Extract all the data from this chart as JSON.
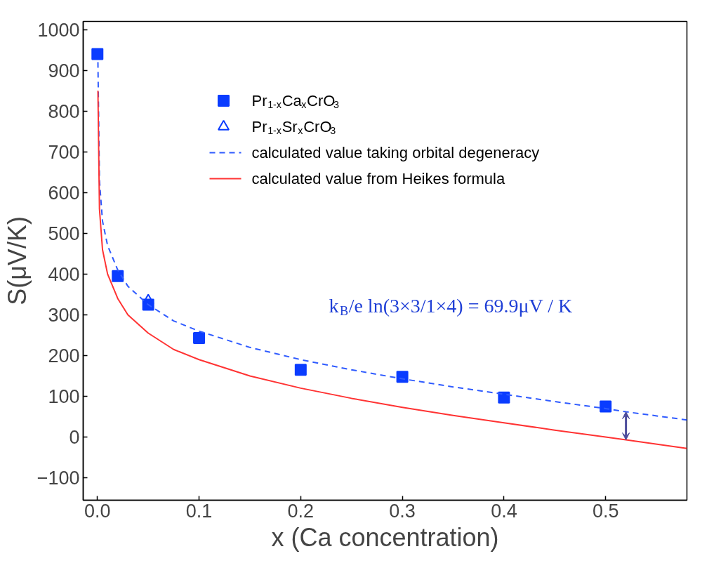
{
  "chart_data": {
    "type": "scatter",
    "xlabel": "x (Ca concentration)",
    "ylabel": "S(μV/K)",
    "xlim": [
      -0.014,
      0.58
    ],
    "ylim": [
      -155,
      1020
    ],
    "xticks": [
      {
        "value": 0,
        "label": "0.0"
      },
      0.1,
      0.2,
      0.3,
      0.4,
      0.5
    ],
    "yticks": [
      -100,
      0,
      100,
      200,
      300,
      400,
      500,
      600,
      700,
      800,
      900,
      1000
    ],
    "grid": false,
    "legend": "top right",
    "annotations": [
      "k$_{B}$/e ln(3×3/1×4) = 69.9μV / K"
    ],
    "series": [
      {
        "name": "Pr$_{1-x}$Ca$_{x}$CrO$_{3}$",
        "marker": "square",
        "color": "#0a3cff",
        "x": [
          0,
          0.02,
          0.05,
          0.1,
          0.2,
          0.3,
          0.4,
          0.5
        ],
        "values": [
          940,
          395,
          325,
          243,
          165,
          148,
          97,
          75
        ]
      },
      {
        "name": "Pr$_{1-x}$Sr$_{x}$CrO$_{3}$",
        "marker": "triangle",
        "color": "#0a3cff",
        "x": [
          0.05
        ],
        "values": [
          335
        ]
      },
      {
        "name": "calculated value taking orbital degeneracy",
        "type": "line",
        "line_style": "dashed",
        "color": "#2f5bff",
        "x": [
          0.0005,
          0.002,
          0.005,
          0.01,
          0.02,
          0.03,
          0.05,
          0.075,
          0.1,
          0.15,
          0.2,
          0.25,
          0.3,
          0.35,
          0.4,
          0.45,
          0.5,
          0.52,
          0.58
        ],
        "values": [
          920,
          630,
          530,
          470,
          410,
          370,
          325,
          285,
          260,
          220,
          190,
          165,
          143,
          123,
          105,
          87,
          70,
          62,
          42
        ]
      },
      {
        "name": "calculated value from Heikes formula",
        "type": "line",
        "line_style": "solid",
        "color": "#ff3333",
        "x": [
          0.0005,
          0.002,
          0.005,
          0.01,
          0.02,
          0.03,
          0.05,
          0.075,
          0.1,
          0.15,
          0.2,
          0.25,
          0.3,
          0.35,
          0.4,
          0.45,
          0.5,
          0.52,
          0.58
        ],
        "values": [
          850,
          560,
          460,
          400,
          340,
          300,
          255,
          215,
          190,
          150,
          120,
          95,
          73,
          53,
          35,
          17,
          0,
          -7,
          -28
        ]
      }
    ]
  }
}
